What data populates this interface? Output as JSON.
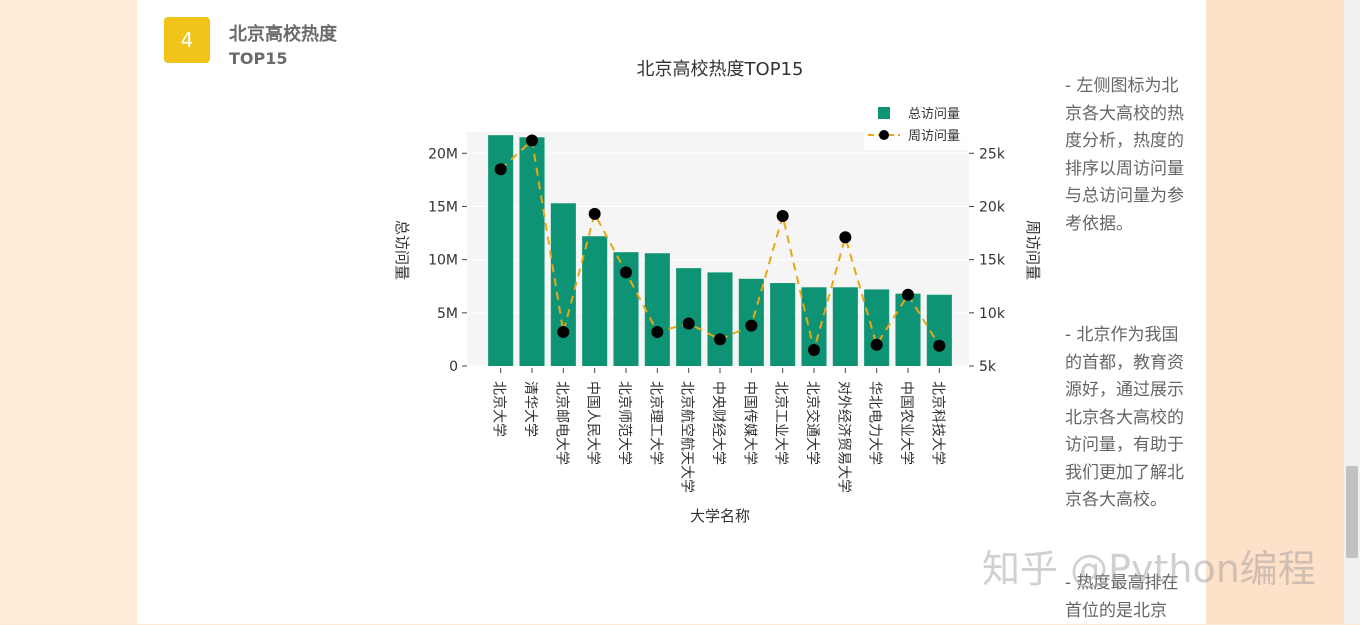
{
  "section": {
    "number": "4",
    "title": "北京高校热度",
    "subtitle": "TOP15"
  },
  "sidebar_text": [
    "- 左侧图标为北京各大高校的热度分析，热度的排序以周访问量与总访问量为参考依据。",
    "- 北京作为我国的首都，教育资源好，通过展示北京各大高校的访问量，有助于我们更加了解北京各大高校。",
    "- 热度最高排在首位的是北京"
  ],
  "watermark": "知乎 @Python编程",
  "chart_data": {
    "type": "bar",
    "title": "北京高校热度TOP15",
    "xlabel": "大学名称",
    "ylabel": "总访问量",
    "y2label": "周访问量",
    "categories": [
      "北京大学",
      "清华大学",
      "北京邮电大学",
      "中国人民大学",
      "北京师范大学",
      "北京理工大学",
      "北京航空航天大学",
      "中央财经大学",
      "中国传媒大学",
      "北京工业大学",
      "北京交通大学",
      "对外经济贸易大学",
      "华北电力大学",
      "中国农业大学",
      "北京科技大学"
    ],
    "series": [
      {
        "name": "总访问量",
        "type": "bar",
        "axis": "left",
        "color": "#0e9474",
        "values": [
          21700000,
          21500000,
          15300000,
          12200000,
          10700000,
          10600000,
          9200000,
          8800000,
          8200000,
          7800000,
          7400000,
          7400000,
          7200000,
          6800000,
          6700000
        ]
      },
      {
        "name": "周访问量",
        "type": "line",
        "axis": "right",
        "color": "#e6a817",
        "marker_color": "#000000",
        "values": [
          23500,
          26200,
          8200,
          19300,
          13800,
          8200,
          9000,
          7500,
          8800,
          19100,
          6500,
          17100,
          7000,
          11700,
          6900
        ]
      }
    ],
    "ylim": [
      0,
      22000000
    ],
    "y2lim": [
      5000,
      27000
    ],
    "yticks": [
      {
        "v": 0,
        "label": "0"
      },
      {
        "v": 5000000,
        "label": "5M"
      },
      {
        "v": 10000000,
        "label": "10M"
      },
      {
        "v": 15000000,
        "label": "15M"
      },
      {
        "v": 20000000,
        "label": "20M"
      }
    ],
    "y2ticks": [
      {
        "v": 5000,
        "label": "5k"
      },
      {
        "v": 10000,
        "label": "10k"
      },
      {
        "v": 15000,
        "label": "15k"
      },
      {
        "v": 20000,
        "label": "20k"
      },
      {
        "v": 25000,
        "label": "25k"
      }
    ],
    "legend": "top-right",
    "grid": true
  }
}
